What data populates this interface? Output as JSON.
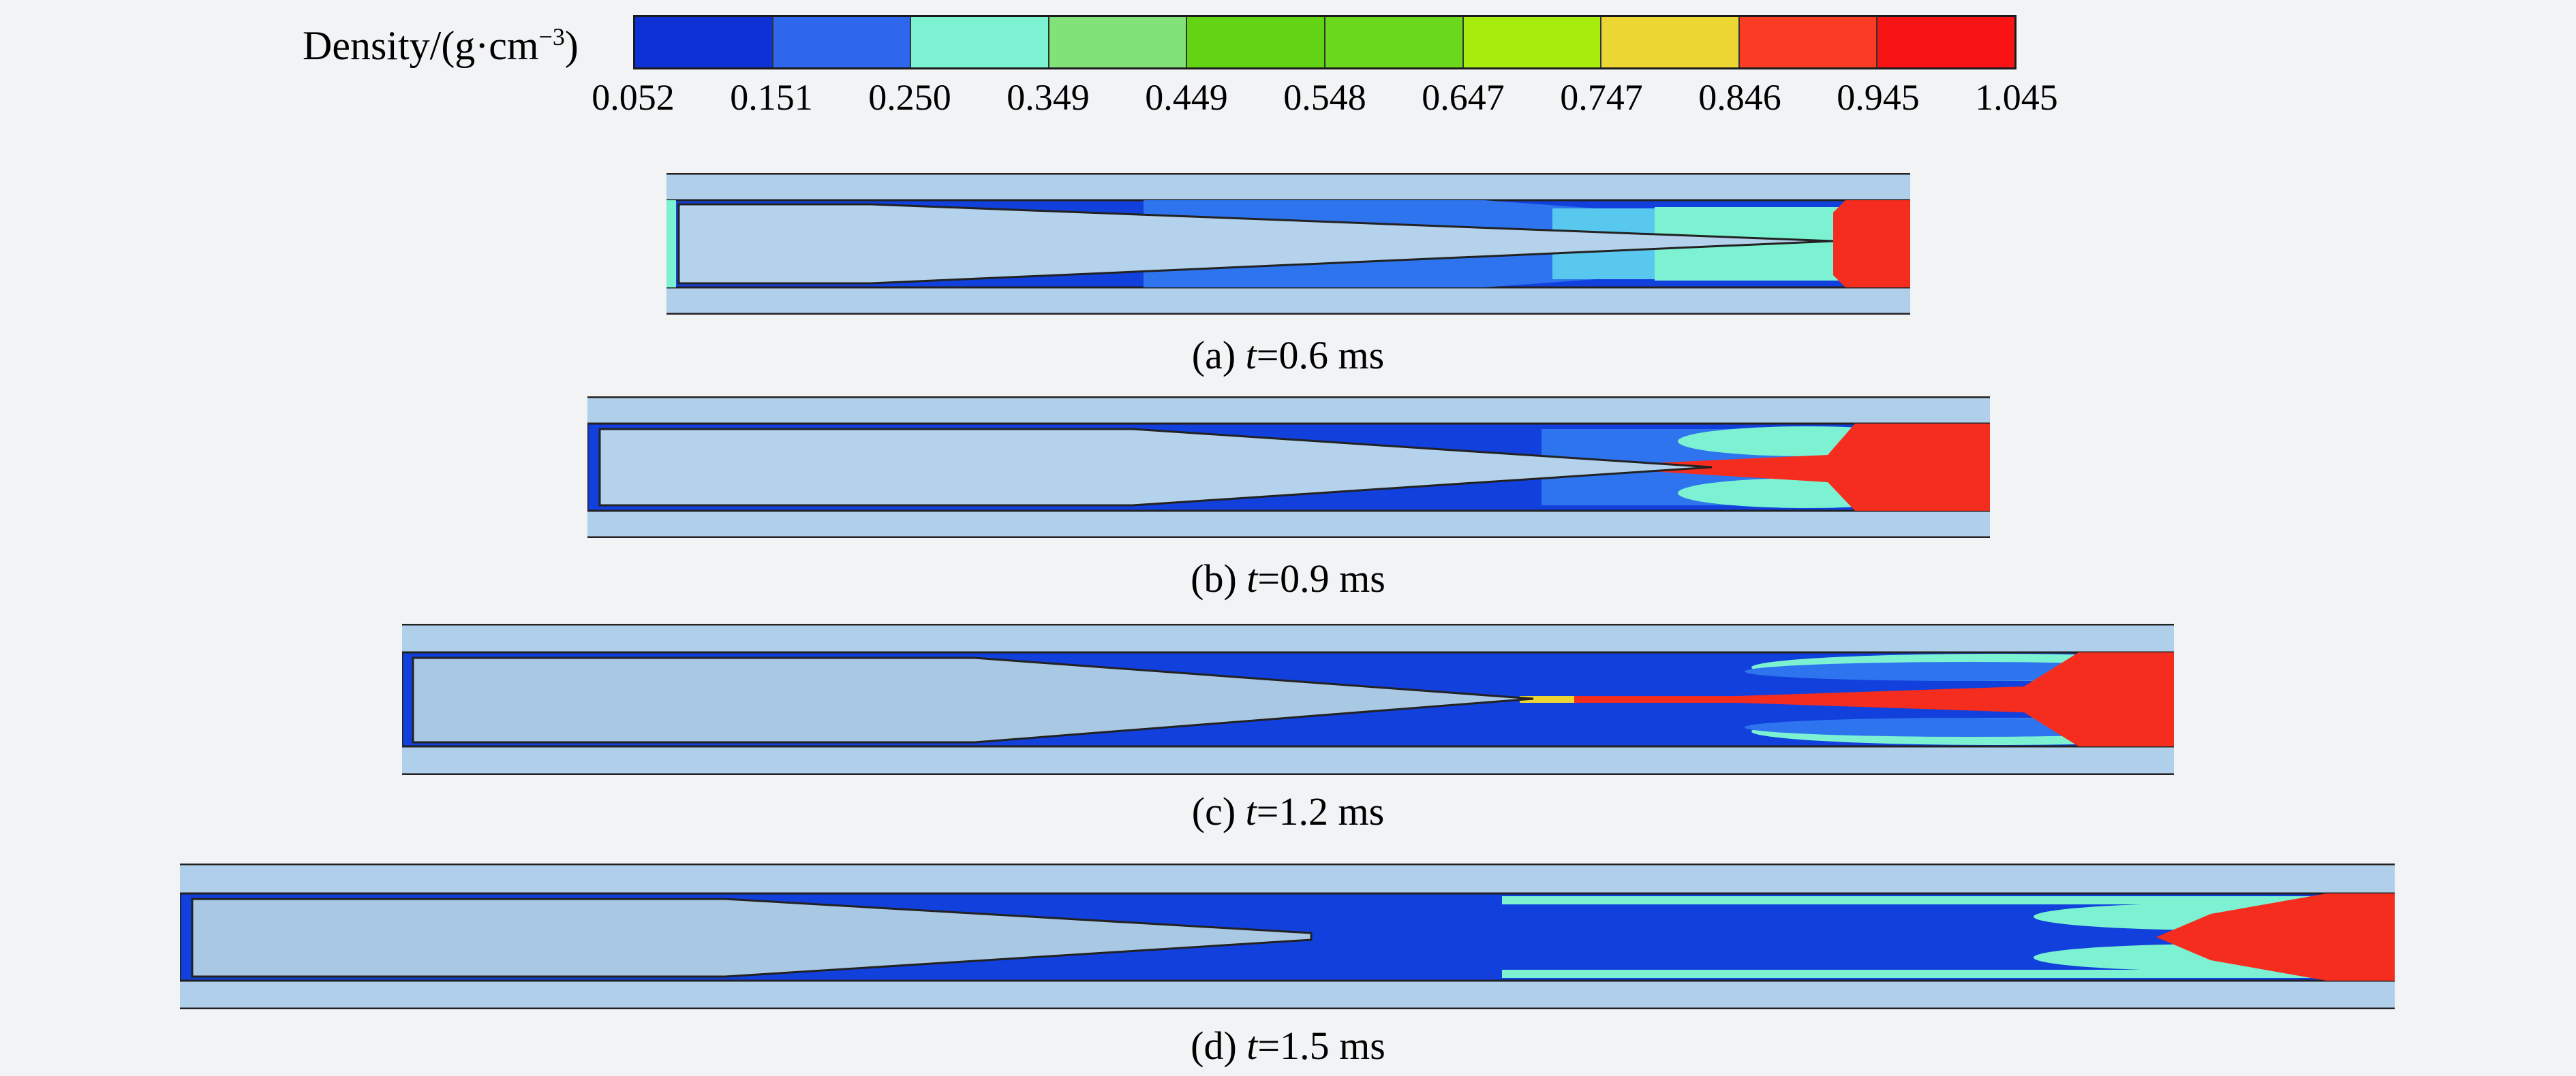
{
  "legend": {
    "title": "Density/(g·cm",
    "title_exp": "−3",
    "title_close": ")",
    "ticks": [
      "0.052",
      "0.151",
      "0.250",
      "0.349",
      "0.449",
      "0.548",
      "0.647",
      "0.747",
      "0.846",
      "0.945",
      "1.045"
    ],
    "colors": [
      "#0d31d4",
      "#2e66ee",
      "#7cf2d2",
      "#82e27a",
      "#62d414",
      "#6ad81c",
      "#a6ec0c",
      "#ecd634",
      "#fa3c24",
      "#f81414"
    ]
  },
  "colors": {
    "background": "#f1f3f5",
    "liner": "#b4d2ec",
    "wall": "#b0cfea",
    "low_density": "#1240dc",
    "mid_density": "#7cf2d2",
    "high_density": "#f52d1e"
  },
  "panels": [
    {
      "label": "(a)",
      "var": "t",
      "value": "=0.6 ms"
    },
    {
      "label": "(b)",
      "var": "t",
      "value": "=0.9 ms"
    },
    {
      "label": "(c)",
      "var": "t",
      "value": "=1.2 ms"
    },
    {
      "label": "(d)",
      "var": "t",
      "value": "=1.5 ms"
    }
  ]
}
